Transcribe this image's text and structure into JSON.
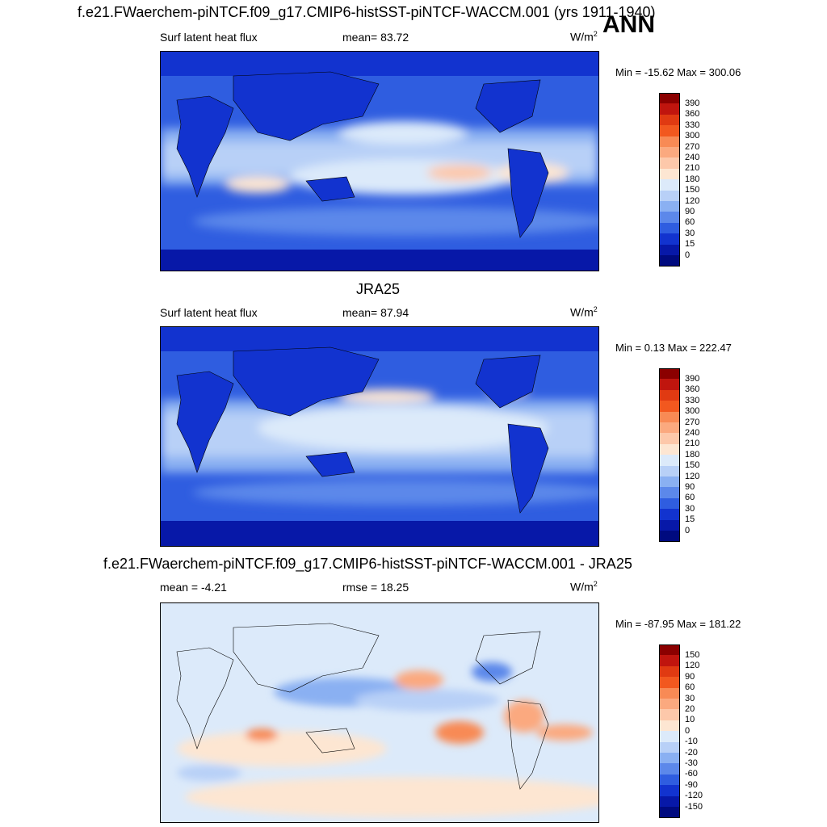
{
  "panels": [
    {
      "title": "f.e21.FWaerchem-piNTCF.f09_g17.CMIP6-histSST-piNTCF-WACCM.001 (yrs 1911-1940)",
      "left_label": "Surf latent heat flux",
      "center_label": "mean=  83.72",
      "units": "W/m",
      "units_sup": "2",
      "season": "ANN",
      "minmax": "Min = -15.62 Max = 300.06",
      "colorbar_labels": [
        "390",
        "360",
        "330",
        "300",
        "270",
        "240",
        "210",
        "180",
        "150",
        "120",
        "90",
        "60",
        "30",
        "15",
        "0"
      ],
      "colorbar_colors": [
        "#8b0000",
        "#c0150e",
        "#e03a12",
        "#f2581f",
        "#f88a55",
        "#fba97f",
        "#fdc8aa",
        "#fde6d2",
        "#dceafa",
        "#b8d0f7",
        "#8ab0f2",
        "#5c88ea",
        "#2f5de0",
        "#1233cf",
        "#0718a8",
        "#000a7f"
      ]
    },
    {
      "title": "JRA25",
      "left_label": "Surf latent heat flux",
      "center_label": "mean=  87.94",
      "units": "W/m",
      "units_sup": "2",
      "minmax": "Min =   0.13 Max = 222.47",
      "colorbar_labels": [
        "390",
        "360",
        "330",
        "300",
        "270",
        "240",
        "210",
        "180",
        "150",
        "120",
        "90",
        "60",
        "30",
        "15",
        "0"
      ],
      "colorbar_colors": [
        "#8b0000",
        "#c0150e",
        "#e03a12",
        "#f2581f",
        "#f88a55",
        "#fba97f",
        "#fdc8aa",
        "#fde6d2",
        "#dceafa",
        "#b8d0f7",
        "#8ab0f2",
        "#5c88ea",
        "#2f5de0",
        "#1233cf",
        "#0718a8",
        "#000a7f"
      ]
    },
    {
      "title": "f.e21.FWaerchem-piNTCF.f09_g17.CMIP6-histSST-piNTCF-WACCM.001 - JRA25",
      "left_label": "mean =  -4.21",
      "center_label": "rmse =  18.25",
      "units": "W/m",
      "units_sup": "2",
      "minmax": "Min = -87.95 Max = 181.22",
      "colorbar_labels": [
        "150",
        "120",
        "90",
        "60",
        "30",
        "20",
        "10",
        "0",
        "-10",
        "-20",
        "-30",
        "-60",
        "-90",
        "-120",
        "-150"
      ],
      "colorbar_colors": [
        "#8b0000",
        "#c0150e",
        "#e03a12",
        "#f2581f",
        "#f88a55",
        "#fba97f",
        "#fdc8aa",
        "#fde6d2",
        "#dceafa",
        "#b8d0f7",
        "#8ab0f2",
        "#5c88ea",
        "#2f5de0",
        "#1233cf",
        "#0718a8",
        "#000a7f"
      ]
    }
  ]
}
